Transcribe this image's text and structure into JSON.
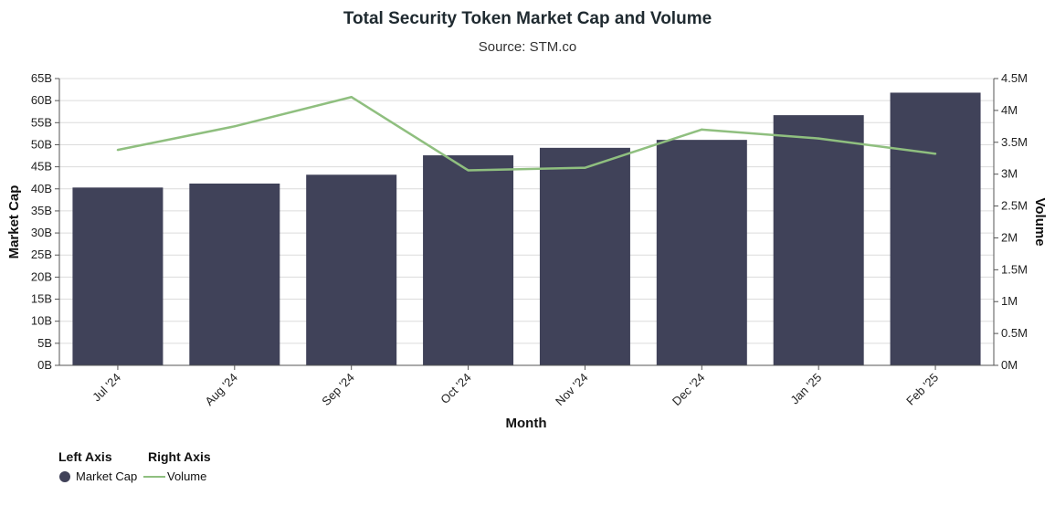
{
  "chart_data": {
    "type": "bar",
    "title": "Total Security Token Market Cap and Volume",
    "subtitle": "Source: STM.co",
    "xlabel": "Month",
    "categories": [
      "Jul '24",
      "Aug '24",
      "Sep '24",
      "Oct '24",
      "Nov '24",
      "Dec '24",
      "Jan '25",
      "Feb '25"
    ],
    "left_axis": {
      "label": "Market Cap",
      "ylim": [
        0,
        65000000000
      ],
      "ticks": [
        "0B",
        "5B",
        "10B",
        "15B",
        "20B",
        "25B",
        "30B",
        "35B",
        "40B",
        "45B",
        "50B",
        "55B",
        "60B",
        "65B"
      ]
    },
    "right_axis": {
      "label": "Volume",
      "ylim": [
        0,
        4500000
      ],
      "ticks": [
        "0M",
        "0.5M",
        "1M",
        "1.5M",
        "2M",
        "2.5M",
        "3M",
        "3.5M",
        "4M",
        "4.5M"
      ]
    },
    "series": [
      {
        "name": "Market Cap",
        "type": "bar",
        "axis": "left",
        "color": "#404259",
        "values": [
          40300000000,
          41200000000,
          43200000000,
          47600000000,
          49300000000,
          51100000000,
          56700000000,
          61800000000
        ]
      },
      {
        "name": "Volume",
        "type": "line",
        "axis": "right",
        "color": "#8fbf7f",
        "values": [
          3380000,
          3750000,
          4210000,
          3060000,
          3100000,
          3700000,
          3560000,
          3320000
        ]
      }
    ],
    "grid": true,
    "legend": {
      "placement": "bottom-left",
      "left_header": "Left Axis",
      "right_header": "Right Axis"
    }
  }
}
